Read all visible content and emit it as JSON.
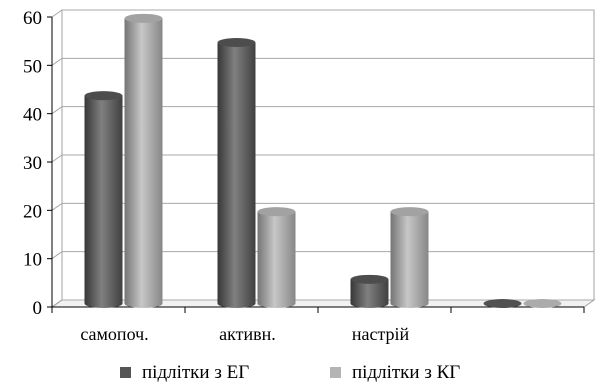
{
  "chart_data": {
    "type": "bar",
    "title": "",
    "xlabel": "",
    "ylabel": "",
    "categories": [
      "самопоч.",
      "активн.",
      "настрій",
      ""
    ],
    "series": [
      {
        "name": "підлітки з ЕГ",
        "values": [
          43,
          54,
          5,
          0
        ],
        "color": "#555555"
      },
      {
        "name": "підлітки з КГ",
        "values": [
          59,
          19,
          19,
          0
        ],
        "color": "#b4b4b4"
      }
    ],
    "ylim": [
      0,
      60
    ],
    "yticks": [
      0,
      10,
      20,
      30,
      40,
      50,
      60
    ],
    "grid": true,
    "three_d": true,
    "legend_position": "bottom"
  }
}
